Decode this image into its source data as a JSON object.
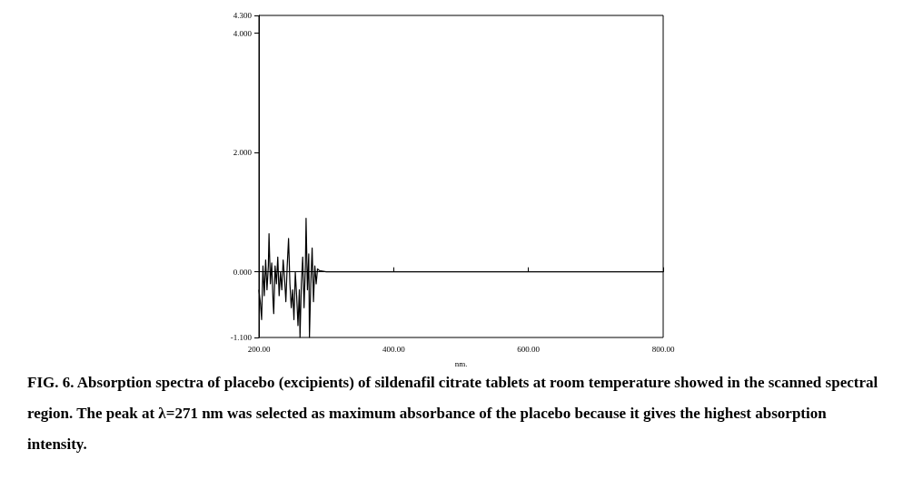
{
  "chart_data": {
    "type": "line",
    "xlabel": "nm.",
    "annotations": [
      "FIG. 6. Absorption spectra of placebo (excipients) of sildenafil citrate tablets at room temperature showed in the scanned spectral region. The peak at λ=271 nm was selected as maximum absorbance of the placebo because it gives the highest absorption intensity."
    ],
    "x": [
      200,
      202,
      204,
      206,
      208,
      210,
      212,
      214,
      215,
      217,
      219,
      221,
      222,
      224,
      226,
      228,
      230,
      232,
      234,
      236,
      238,
      240,
      242,
      244,
      246,
      248,
      250,
      252,
      254,
      256,
      258,
      260,
      261,
      263,
      265,
      267,
      269,
      270,
      272,
      274,
      275,
      277,
      279,
      281,
      283,
      285,
      287,
      290,
      300,
      400,
      500,
      600,
      700,
      800
    ],
    "series": [
      {
        "color": "#000000",
        "values": [
          -0.3,
          -0.5,
          -0.8,
          0.1,
          -0.4,
          0.2,
          -0.3,
          0.1,
          0.64,
          -0.2,
          0.15,
          -0.5,
          -0.7,
          0.1,
          -0.2,
          0.25,
          -0.4,
          0.0,
          -0.3,
          0.2,
          -0.1,
          -0.5,
          0.1,
          0.56,
          -0.2,
          -0.6,
          -0.3,
          -0.8,
          0.0,
          -0.4,
          -0.9,
          -0.3,
          -1.1,
          -0.2,
          0.25,
          -0.6,
          0.1,
          0.9,
          -0.3,
          0.3,
          -1.1,
          -0.2,
          0.4,
          -0.5,
          0.1,
          -0.2,
          0.05,
          0.02,
          0,
          0,
          0,
          0,
          0,
          0
        ]
      }
    ],
    "xlim": [
      200,
      800
    ],
    "xticks": [
      {
        "value": 200,
        "label": "200.00"
      },
      {
        "value": 400,
        "label": "400.00"
      },
      {
        "value": 600,
        "label": "600.00"
      },
      {
        "value": 800,
        "label": "800.00"
      }
    ],
    "ylim": [
      -1.1,
      4.3
    ],
    "yticks": [
      {
        "value": -1.1,
        "label": "-1.100"
      },
      {
        "value": 0,
        "label": "0.000"
      },
      {
        "value": 2,
        "label": "2.000"
      },
      {
        "value": 4,
        "label": "4.000"
      },
      {
        "value": 4.3,
        "label": "4.300"
      }
    ],
    "marker": "none",
    "line_style": "solid"
  }
}
